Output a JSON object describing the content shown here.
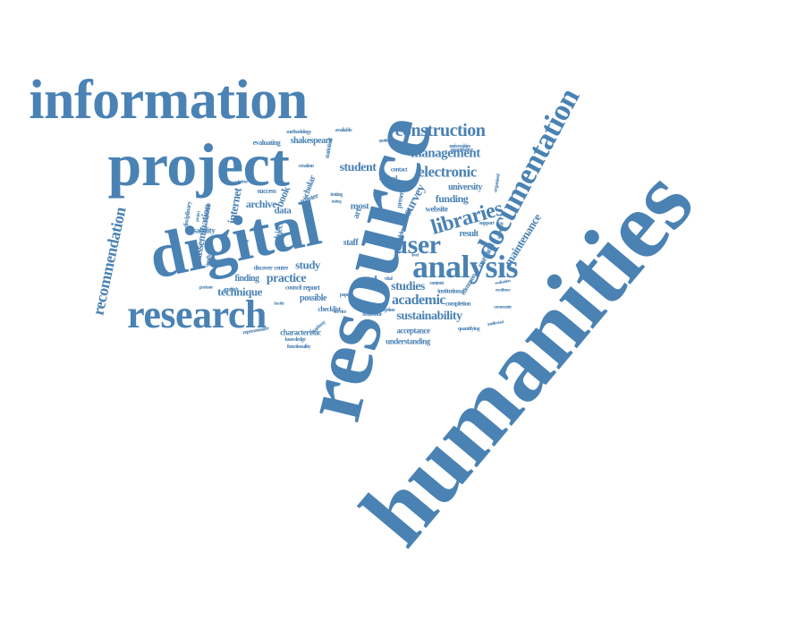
{
  "colors": {
    "word": "#4a82b4",
    "background": "#ffffff"
  },
  "words": [
    {
      "text": "humanities"
    },
    {
      "text": "resource"
    },
    {
      "text": "information"
    },
    {
      "text": "project"
    },
    {
      "text": "digital"
    },
    {
      "text": "research"
    },
    {
      "text": "analysis"
    },
    {
      "text": "documentation"
    },
    {
      "text": "construction"
    },
    {
      "text": "user"
    },
    {
      "text": "libraries"
    },
    {
      "text": "management"
    },
    {
      "text": "electronic"
    },
    {
      "text": "recommendation"
    },
    {
      "text": "sustainability"
    },
    {
      "text": "academic"
    },
    {
      "text": "student"
    },
    {
      "text": "practice"
    },
    {
      "text": "studies"
    },
    {
      "text": "funding"
    },
    {
      "text": "survey"
    },
    {
      "text": "maintenance"
    },
    {
      "text": "technique"
    },
    {
      "text": "study"
    },
    {
      "text": "internet"
    },
    {
      "text": "dissemination"
    },
    {
      "text": "archive"
    },
    {
      "text": "book"
    },
    {
      "text": "university"
    },
    {
      "text": "website"
    },
    {
      "text": "usability"
    },
    {
      "text": "data"
    },
    {
      "text": "finding"
    },
    {
      "text": "staff"
    },
    {
      "text": "good"
    },
    {
      "text": "result"
    },
    {
      "text": "method"
    },
    {
      "text": "possible"
    },
    {
      "text": "acceptance"
    },
    {
      "text": "understanding"
    },
    {
      "text": "characteristic"
    },
    {
      "text": "shakespeare"
    },
    {
      "text": "evaluating"
    },
    {
      "text": "methodology"
    },
    {
      "text": "available"
    },
    {
      "text": "most"
    },
    {
      "text": "art"
    },
    {
      "text": "many"
    },
    {
      "text": "report"
    },
    {
      "text": "council"
    },
    {
      "text": "centre"
    },
    {
      "text": "discover"
    },
    {
      "text": "subject"
    },
    {
      "text": "success"
    },
    {
      "text": "master"
    },
    {
      "text": "scholar"
    },
    {
      "text": "quantifying"
    },
    {
      "text": "completion"
    },
    {
      "text": "checklist"
    },
    {
      "text": "statistical"
    },
    {
      "text": "critical"
    },
    {
      "text": "contact"
    },
    {
      "text": "universities"
    },
    {
      "text": "quantitative"
    },
    {
      "text": "organised"
    },
    {
      "text": "technical"
    },
    {
      "text": "support"
    },
    {
      "text": "present"
    },
    {
      "text": "builder"
    },
    {
      "text": "content"
    },
    {
      "text": "institutional"
    },
    {
      "text": "common"
    },
    {
      "text": "evaluation"
    },
    {
      "text": "creation"
    },
    {
      "text": "disciplinary"
    },
    {
      "text": "important"
    },
    {
      "text": "significant"
    },
    {
      "text": "usage"
    },
    {
      "text": "service"
    },
    {
      "text": "behaviour"
    },
    {
      "text": "perception"
    },
    {
      "text": "knowledge"
    },
    {
      "text": "functionality"
    },
    {
      "text": "representative"
    },
    {
      "text": "academy"
    },
    {
      "text": "paper"
    },
    {
      "text": "qualitative"
    },
    {
      "text": "excellence"
    },
    {
      "text": "community"
    },
    {
      "text": "intellectual"
    },
    {
      "text": "graduate"
    },
    {
      "text": "project"
    },
    {
      "text": "testing"
    },
    {
      "text": "level"
    },
    {
      "text": "vital"
    },
    {
      "text": "faculty"
    },
    {
      "text": "testing"
    },
    {
      "text": "approach"
    },
    {
      "text": "whether"
    }
  ]
}
